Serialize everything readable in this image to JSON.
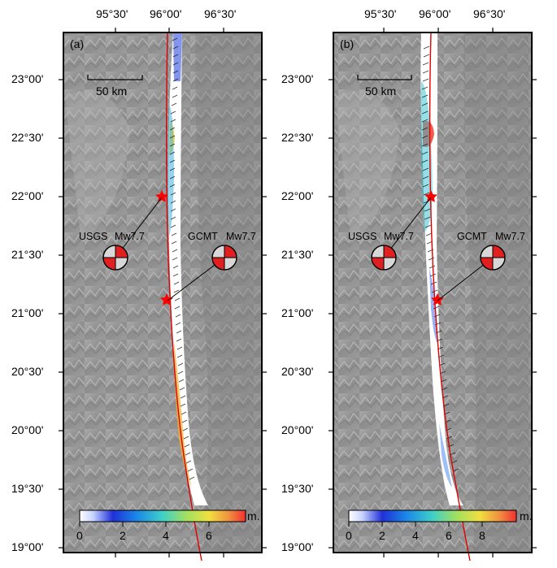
{
  "panels": [
    {
      "id": "a",
      "label": "(a)",
      "scale_label": "50 km",
      "usgs_label": "USGS",
      "usgs_mag": "Mw7.7",
      "gcmt_label": "GCMT",
      "gcmt_mag": "Mw7.7",
      "colorbar_ticks": [
        "0",
        "2",
        "4",
        "6"
      ],
      "colorbar_unit": "m."
    },
    {
      "id": "b",
      "label": "(b)",
      "scale_label": "50 km",
      "usgs_label": "USGS",
      "usgs_mag": "Mw7.7",
      "gcmt_label": "GCMT",
      "gcmt_mag": "Mw7.7",
      "colorbar_ticks": [
        "0",
        "2",
        "4",
        "6",
        "8"
      ],
      "colorbar_unit": "m."
    }
  ],
  "lon_ticks": [
    "95°30'",
    "96°00'",
    "96°30'"
  ],
  "lat_ticks": [
    "23°00'",
    "22°30'",
    "22°00'",
    "21°30'",
    "21°00'",
    "20°30'",
    "20°00'",
    "19°30'",
    "19°00'"
  ],
  "colors": {
    "fault": "#e00000",
    "epicenter": "#ff0000",
    "beachball_fill": "#e02020"
  }
}
